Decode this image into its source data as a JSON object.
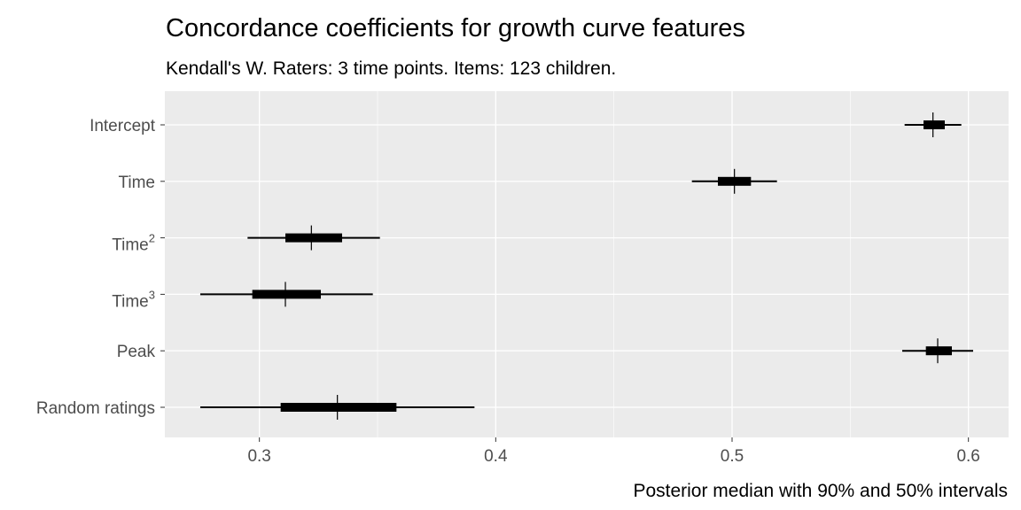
{
  "chart_data": {
    "type": "interval",
    "title": "Concordance coefficients for growth curve features",
    "subtitle": "Kendall's W. Raters: 3 time points. Items: 123 children.",
    "caption": "Posterior median with 90% and 50% intervals",
    "xlim": [
      0.26,
      0.617
    ],
    "xticks": [
      0.3,
      0.4,
      0.5,
      0.6
    ],
    "xtick_labels": [
      "0.3",
      "0.4",
      "0.5",
      "0.6"
    ],
    "grid": true,
    "series": [
      {
        "name": "Intercept",
        "sup": "",
        "median": 0.585,
        "q50": [
          0.581,
          0.59
        ],
        "q90": [
          0.573,
          0.597
        ]
      },
      {
        "name": "Time",
        "sup": "",
        "median": 0.501,
        "q50": [
          0.494,
          0.508
        ],
        "q90": [
          0.483,
          0.519
        ]
      },
      {
        "name": "Time",
        "sup": "2",
        "median": 0.322,
        "q50": [
          0.311,
          0.335
        ],
        "q90": [
          0.295,
          0.351
        ]
      },
      {
        "name": "Time",
        "sup": "3",
        "median": 0.311,
        "q50": [
          0.297,
          0.326
        ],
        "q90": [
          0.275,
          0.348
        ]
      },
      {
        "name": "Peak",
        "sup": "",
        "median": 0.587,
        "q50": [
          0.582,
          0.593
        ],
        "q90": [
          0.572,
          0.602
        ]
      },
      {
        "name": "Random ratings",
        "sup": "",
        "median": 0.333,
        "q50": [
          0.309,
          0.358
        ],
        "q90": [
          0.275,
          0.391
        ]
      }
    ]
  }
}
